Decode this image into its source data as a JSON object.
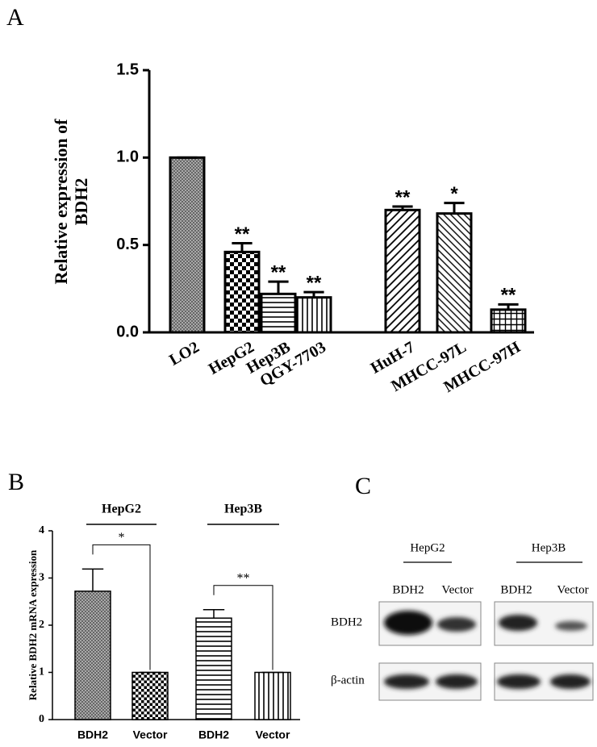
{
  "panel_labels": [
    "A",
    "B",
    "C"
  ],
  "chart_data": [
    {
      "type": "bar",
      "ylabel": [
        "Relative expression of",
        "BDH2"
      ],
      "categories": [
        "LO2",
        "HepG2",
        "Hep3B",
        "QGY-7703",
        "HuH-7",
        "MHCC-97L",
        "MHCC-97H"
      ],
      "values": [
        1.0,
        0.46,
        0.22,
        0.2,
        0.7,
        0.68,
        0.13
      ],
      "errors": [
        0,
        0.05,
        0.07,
        0.03,
        0.02,
        0.06,
        0.03
      ],
      "significance": [
        null,
        "**",
        "**",
        "**",
        "**",
        "*",
        "**"
      ],
      "ylim": [
        0,
        1.5
      ],
      "yticks": [
        {
          "value": 0,
          "label": "0.0"
        },
        0.5,
        {
          "value": 1,
          "label": "1.0"
        },
        1.5
      ]
    },
    {
      "type": "bar",
      "ylabel": [
        "Relative BDH2 mRNA expression"
      ],
      "groups": [
        "HepG2",
        "Hep3B"
      ],
      "group_significance": [
        "*",
        "**"
      ],
      "categories": [
        "BDH2",
        "Vector",
        "BDH2",
        "Vector"
      ],
      "values": [
        2.72,
        1.0,
        2.15,
        1.0
      ],
      "errors": [
        0.47,
        0,
        0.18,
        0
      ],
      "ylim": [
        0,
        4
      ],
      "yticks": [
        0,
        1,
        2,
        3,
        4
      ]
    }
  ],
  "blot": {
    "groups": [
      "HepG2",
      "Hep3B"
    ],
    "lanes": [
      "BDH2",
      "Vector",
      "BDH2",
      "Vector"
    ],
    "rows": [
      "BDH2",
      "β-actin"
    ]
  }
}
